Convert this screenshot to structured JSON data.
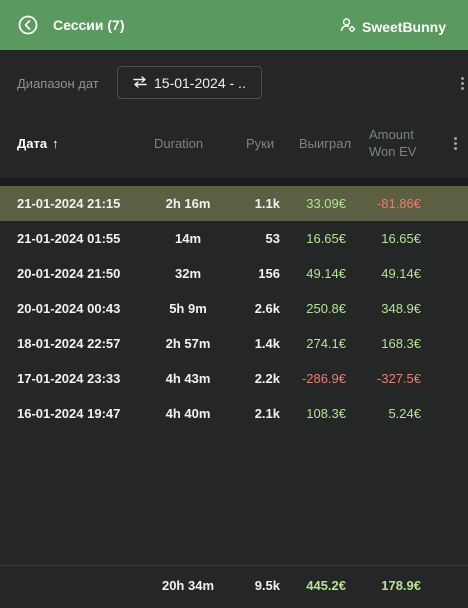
{
  "header": {
    "title": "Сессии (7)",
    "user": "SweetBunny",
    "bg_color": "#5b9a5e"
  },
  "filter": {
    "label": "Диапазон дат",
    "date_value": "15-01-2024 - .."
  },
  "columns": {
    "date": "Дата",
    "sort_indicator": "↑",
    "duration": "Duration",
    "hands": "Руки",
    "won": "Выиграл",
    "amount_won_ev_line1": "Amount",
    "amount_won_ev_line2": "Won EV"
  },
  "rows": [
    {
      "date": "21-01-2024 21:15",
      "duration": "2h 16m",
      "hands": "1.1k",
      "won": "33.09€",
      "ev": "-81.86€",
      "selected": true
    },
    {
      "date": "21-01-2024 01:55",
      "duration": "14m",
      "hands": "53",
      "won": "16.65€",
      "ev": "16.65€",
      "selected": false
    },
    {
      "date": "20-01-2024 21:50",
      "duration": "32m",
      "hands": "156",
      "won": "49.14€",
      "ev": "49.14€",
      "selected": false
    },
    {
      "date": "20-01-2024 00:43",
      "duration": "5h 9m",
      "hands": "2.6k",
      "won": "250.8€",
      "ev": "348.9€",
      "selected": false
    },
    {
      "date": "18-01-2024 22:57",
      "duration": "2h 57m",
      "hands": "1.4k",
      "won": "274.1€",
      "ev": "168.3€",
      "selected": false
    },
    {
      "date": "17-01-2024 23:33",
      "duration": "4h 43m",
      "hands": "2.2k",
      "won": "-286.9€",
      "ev": "-327.5€",
      "selected": false
    },
    {
      "date": "16-01-2024 19:47",
      "duration": "4h 40m",
      "hands": "2.1k",
      "won": "108.3€",
      "ev": "5.24€",
      "selected": false
    }
  ],
  "totals": {
    "duration": "20h 34m",
    "hands": "9.5k",
    "won": "445.2€",
    "ev": "178.9€"
  },
  "colors": {
    "positive": "#b6e294",
    "negative": "#ee7c6f",
    "selected_row": "#5a6041",
    "background": "#242725"
  },
  "icons": [
    "back-circle-icon",
    "user-settings-icon",
    "swap-arrows-icon",
    "kebab-menu-icon"
  ]
}
